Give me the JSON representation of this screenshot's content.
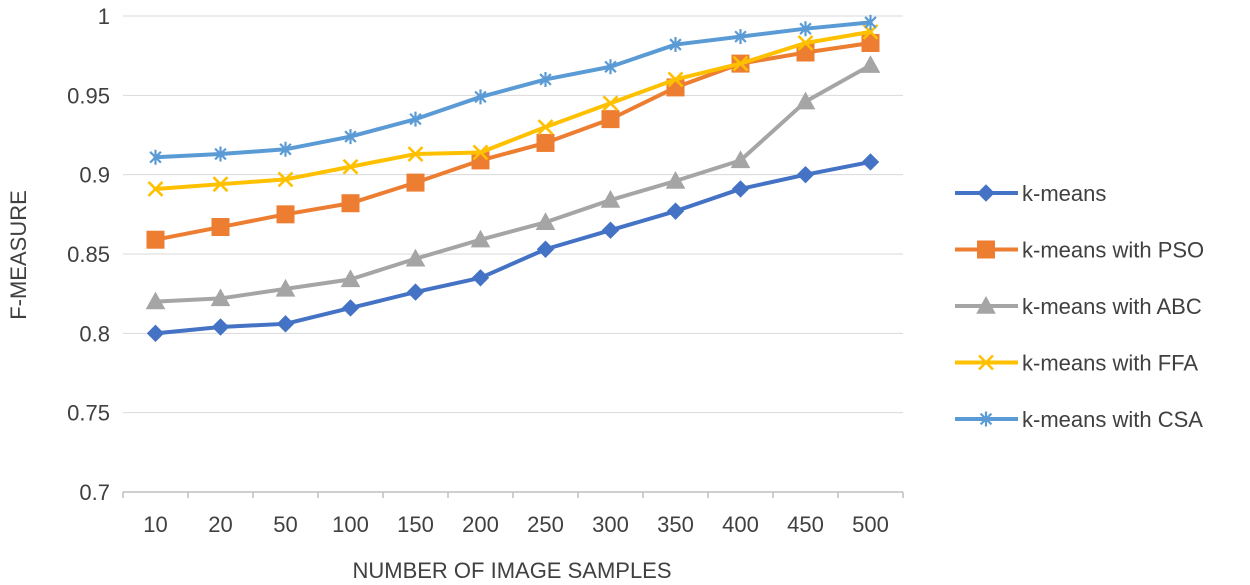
{
  "chart_data": {
    "type": "line",
    "title": "",
    "xlabel": "NUMBER OF IMAGE SAMPLES",
    "ylabel": "F-MEASURE",
    "ylim": [
      0.7,
      1.0
    ],
    "yticks": [
      "0.7",
      "0.75",
      "0.8",
      "0.85",
      "0.9",
      "0.95",
      "1"
    ],
    "grid": true,
    "legend_position": "right",
    "categories": [
      "10",
      "20",
      "50",
      "100",
      "150",
      "200",
      "250",
      "300",
      "350",
      "400",
      "450",
      "500"
    ],
    "series": [
      {
        "name": "k-means",
        "color": "#4472C4",
        "marker": "diamond",
        "values": [
          0.8,
          0.804,
          0.806,
          0.816,
          0.826,
          0.835,
          0.853,
          0.865,
          0.877,
          0.891,
          0.9,
          0.908
        ]
      },
      {
        "name": "k-means with PSO",
        "color": "#ED7D31",
        "marker": "square",
        "values": [
          0.859,
          0.867,
          0.875,
          0.882,
          0.895,
          0.909,
          0.92,
          0.935,
          0.955,
          0.97,
          0.977,
          0.983
        ]
      },
      {
        "name": "k-means with ABC",
        "color": "#A5A5A5",
        "marker": "triangle",
        "values": [
          0.82,
          0.822,
          0.828,
          0.834,
          0.847,
          0.859,
          0.87,
          0.884,
          0.896,
          0.909,
          0.946,
          0.969
        ]
      },
      {
        "name": "k-means with FFA",
        "color": "#FFC000",
        "marker": "x",
        "values": [
          0.891,
          0.894,
          0.897,
          0.905,
          0.913,
          0.914,
          0.93,
          0.945,
          0.96,
          0.97,
          0.983,
          0.99
        ]
      },
      {
        "name": "k-means with CSA",
        "color": "#5B9BD5",
        "marker": "star",
        "values": [
          0.911,
          0.913,
          0.916,
          0.924,
          0.935,
          0.949,
          0.96,
          0.968,
          0.982,
          0.987,
          0.992,
          0.996
        ]
      }
    ]
  }
}
